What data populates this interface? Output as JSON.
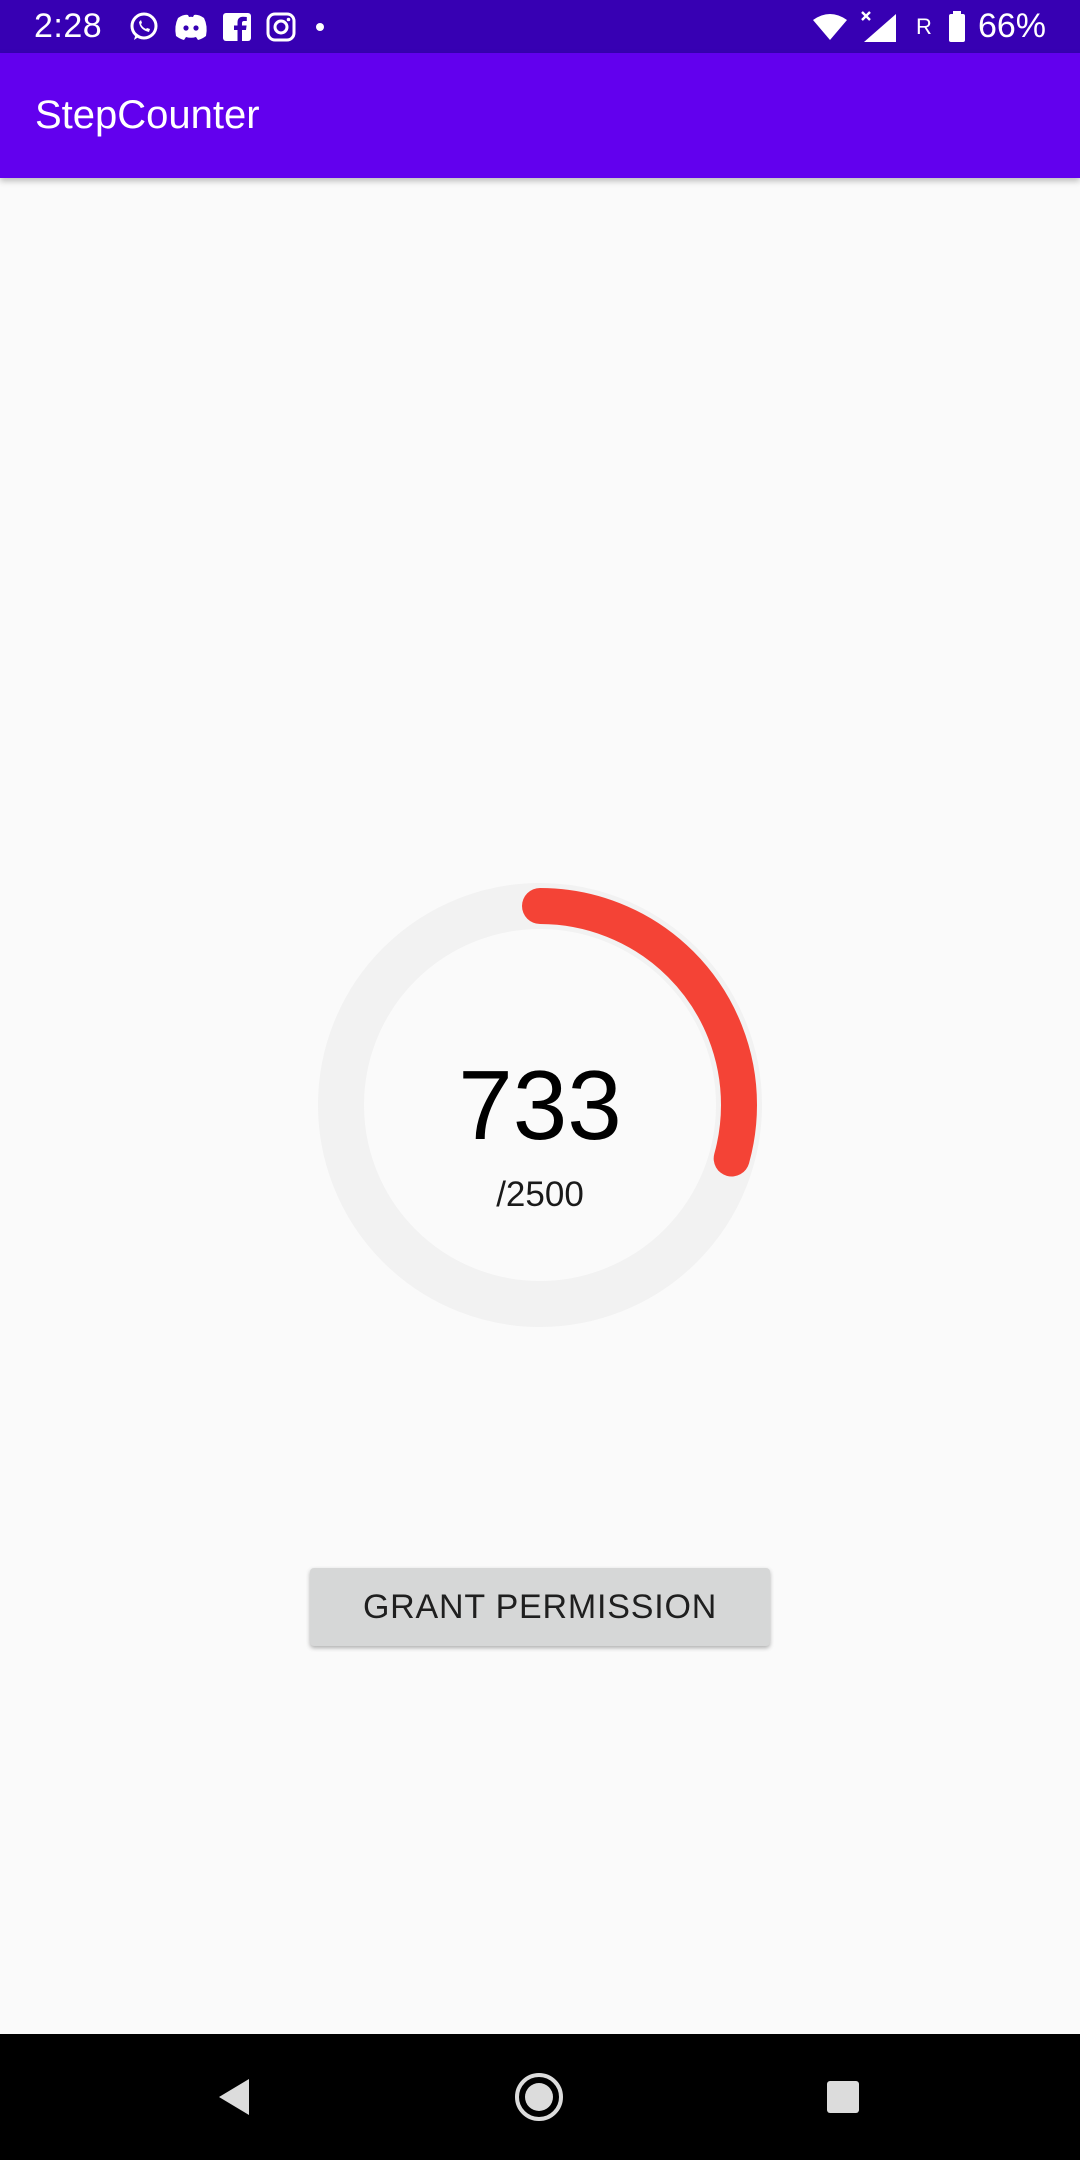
{
  "status_bar": {
    "time": "2:28",
    "notification_icons": [
      "whatsapp-icon",
      "discord-icon",
      "facebook-icon",
      "instagram-icon",
      "more-dot-icon"
    ],
    "roaming_label": "R",
    "battery_percent": "66%"
  },
  "app_bar": {
    "title": "StepCounter"
  },
  "steps": {
    "count": "733",
    "goal_label": "/2500",
    "progress_fraction": 0.2932
  },
  "actions": {
    "grant_permission_label": "GRANT PERMISSION"
  },
  "colors": {
    "status_bar": "#3700b3",
    "app_bar": "#6200ee",
    "progress_track": "#f2f2f2",
    "progress_fill": "#f44336",
    "button_bg": "#d6d7d7"
  },
  "nav_bar": {
    "buttons": [
      "back-icon",
      "home-icon",
      "recents-icon"
    ]
  }
}
